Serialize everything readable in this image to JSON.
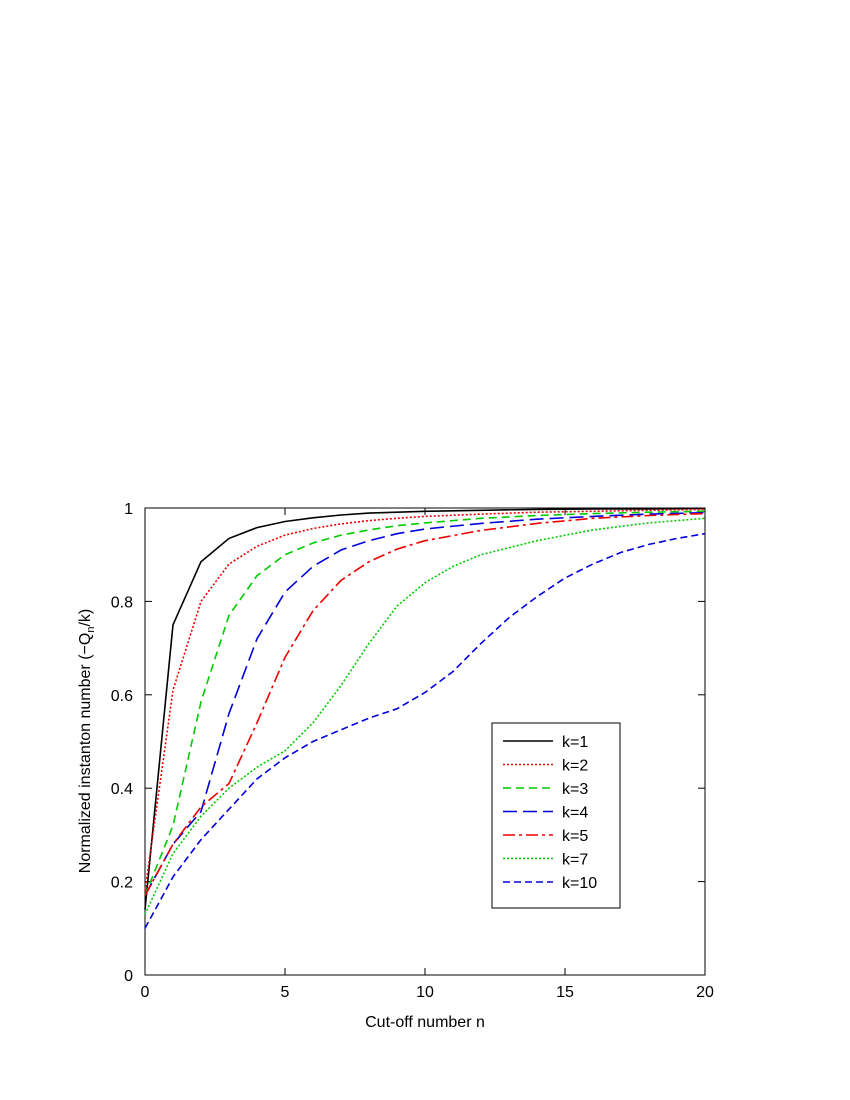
{
  "chart_data": {
    "type": "line",
    "title": "",
    "xlabel": "Cut-off number n",
    "ylabel": "Normalized instanton number (-Q_n/k)",
    "ylabel_parts": {
      "main": "Normalized instanton number (−Q",
      "sub": "n",
      "tail": "/k)"
    },
    "xlim": [
      0,
      20
    ],
    "ylim": [
      0,
      1
    ],
    "xticks": [
      0,
      5,
      10,
      15,
      20
    ],
    "yticks": [
      0,
      0.2,
      0.4,
      0.6,
      0.8,
      1
    ],
    "xtick_labels": [
      "0",
      "5",
      "10",
      "15",
      "20"
    ],
    "ytick_labels": [
      "0",
      "0.2",
      "0.4",
      "0.6",
      "0.8",
      "1"
    ],
    "grid": false,
    "legend_position": "center-right",
    "series": [
      {
        "name": "k=1",
        "color": "#000000",
        "dash": "none",
        "x": [
          0,
          1,
          2,
          3,
          4,
          5,
          6,
          7,
          8,
          9,
          10,
          12,
          14,
          16,
          18,
          20
        ],
        "y": [
          0.14,
          0.75,
          0.885,
          0.935,
          0.958,
          0.971,
          0.979,
          0.985,
          0.989,
          0.991,
          0.993,
          0.995,
          0.997,
          0.998,
          0.998,
          0.999
        ]
      },
      {
        "name": "k=2",
        "color": "#ee0000",
        "dash": "2,2",
        "x": [
          0,
          1,
          2,
          3,
          4,
          5,
          6,
          7,
          8,
          9,
          10,
          12,
          14,
          16,
          18,
          20
        ],
        "y": [
          0.18,
          0.61,
          0.8,
          0.88,
          0.918,
          0.942,
          0.956,
          0.966,
          0.973,
          0.978,
          0.982,
          0.987,
          0.991,
          0.993,
          0.995,
          0.997
        ]
      },
      {
        "name": "k=3",
        "color": "#00cc00",
        "dash": "8,5",
        "x": [
          0,
          1,
          2,
          3,
          4,
          5,
          6,
          7,
          8,
          9,
          10,
          12,
          14,
          16,
          18,
          20
        ],
        "y": [
          0.17,
          0.32,
          0.585,
          0.77,
          0.855,
          0.9,
          0.925,
          0.942,
          0.953,
          0.962,
          0.968,
          0.978,
          0.984,
          0.988,
          0.991,
          0.993
        ]
      },
      {
        "name": "k=4",
        "color": "#0000dd",
        "dash": "14,6",
        "x": [
          0,
          1,
          2,
          3,
          4,
          5,
          6,
          7,
          8,
          9,
          10,
          12,
          14,
          16,
          18,
          20
        ],
        "y": [
          0.17,
          0.28,
          0.35,
          0.56,
          0.72,
          0.82,
          0.875,
          0.91,
          0.93,
          0.945,
          0.955,
          0.967,
          0.976,
          0.982,
          0.987,
          0.99
        ]
      },
      {
        "name": "k=5",
        "color": "#ee0000",
        "dash": "12,4,3,4",
        "x": [
          0,
          1,
          2,
          3,
          4,
          5,
          6,
          7,
          8,
          9,
          10,
          12,
          14,
          16,
          18,
          20
        ],
        "y": [
          0.17,
          0.28,
          0.36,
          0.41,
          0.54,
          0.68,
          0.78,
          0.845,
          0.885,
          0.912,
          0.93,
          0.952,
          0.967,
          0.978,
          0.984,
          0.988
        ]
      },
      {
        "name": "k=7",
        "color": "#00cc00",
        "dash": "2,2",
        "x": [
          0,
          1,
          2,
          3,
          4,
          5,
          6,
          7,
          8,
          9,
          10,
          11,
          12,
          14,
          16,
          18,
          20
        ],
        "y": [
          0.13,
          0.26,
          0.34,
          0.4,
          0.445,
          0.48,
          0.54,
          0.62,
          0.71,
          0.79,
          0.84,
          0.875,
          0.9,
          0.93,
          0.953,
          0.968,
          0.978
        ]
      },
      {
        "name": "k=10",
        "color": "#0000dd",
        "dash": "7,4",
        "x": [
          0,
          1,
          2,
          3,
          4,
          5,
          6,
          7,
          8,
          9,
          10,
          11,
          12,
          13,
          14,
          15,
          16,
          17,
          18,
          19,
          20
        ],
        "y": [
          0.1,
          0.21,
          0.29,
          0.355,
          0.42,
          0.465,
          0.5,
          0.525,
          0.55,
          0.57,
          0.605,
          0.65,
          0.71,
          0.765,
          0.81,
          0.85,
          0.88,
          0.905,
          0.922,
          0.935,
          0.945
        ]
      }
    ]
  }
}
